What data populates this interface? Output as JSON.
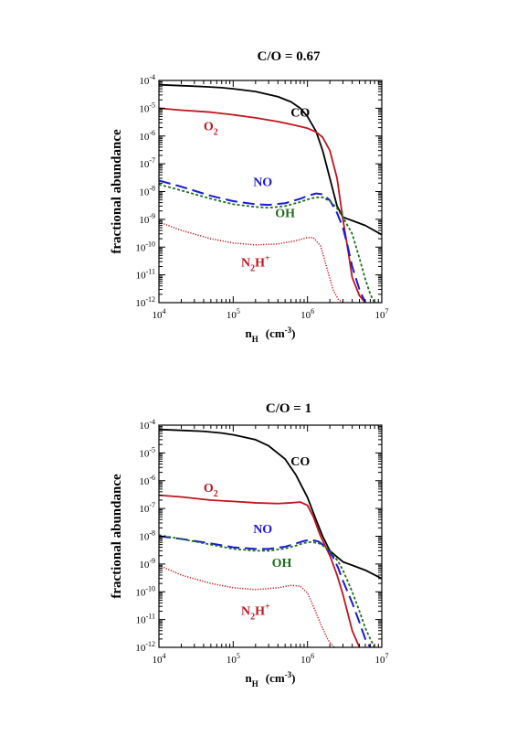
{
  "chart_data": [
    {
      "type": "line",
      "title": "C/O = 0.67",
      "xlabel": {
        "main": "n",
        "sub": "H",
        "unit": "(cm",
        "unit_sup": "-3",
        "unit_end": ")"
      },
      "ylabel": "fractional abundance",
      "x_scale": "log",
      "y_scale": "log",
      "xlim": [
        10000,
        10000000
      ],
      "ylim": [
        1e-12,
        0.0001
      ],
      "x_ticks": [
        {
          "value": 10000,
          "base": "10",
          "exp": "4"
        },
        {
          "value": 100000,
          "base": "10",
          "exp": "5"
        },
        {
          "value": 1000000,
          "base": "10",
          "exp": "6"
        },
        {
          "value": 10000000,
          "base": "10",
          "exp": "7"
        }
      ],
      "y_ticks": [
        {
          "value": 1e-12,
          "base": "10",
          "exp": "-12"
        },
        {
          "value": 1e-11,
          "base": "10",
          "exp": "-11"
        },
        {
          "value": 1e-10,
          "base": "10",
          "exp": "-10"
        },
        {
          "value": 1e-09,
          "base": "10",
          "exp": "-9"
        },
        {
          "value": 1e-08,
          "base": "10",
          "exp": "-8"
        },
        {
          "value": 1e-07,
          "base": "10",
          "exp": "-7"
        },
        {
          "value": 1e-06,
          "base": "10",
          "exp": "-6"
        },
        {
          "value": 1e-05,
          "base": "10",
          "exp": "-5"
        },
        {
          "value": 0.0001,
          "base": "10",
          "exp": "-4"
        }
      ],
      "grid": false,
      "series": [
        {
          "name": "CO",
          "label_main": "CO",
          "label_sub": "",
          "label_sup": "",
          "label_at": [
            800000,
            5e-06
          ],
          "color": "#000000",
          "style": "solid",
          "x": [
            10000,
            20000,
            40000,
            70000,
            100000,
            200000,
            400000,
            600000,
            800000,
            1000000,
            1300000,
            1600000,
            2000000,
            2500000,
            3000000,
            4000000,
            6000000,
            10000000
          ],
          "y": [
            7e-05,
            6.5e-05,
            6e-05,
            5.5e-05,
            5e-05,
            4e-05,
            2.6e-05,
            1.7e-05,
            1e-05,
            5e-06,
            1.5e-06,
            3e-07,
            3e-08,
            3e-09,
            1.2e-09,
            9e-10,
            6e-10,
            2.8e-10
          ]
        },
        {
          "name": "O2",
          "label_main": "O",
          "label_sub": "2",
          "label_sup": "",
          "label_at": [
            50000,
            1.6e-06
          ],
          "color": "#c0141e",
          "style": "solid",
          "x": [
            10000,
            20000,
            50000,
            100000,
            200000,
            400000,
            700000,
            1000000,
            1300000,
            1600000,
            2000000,
            2500000,
            3000000,
            3500000,
            4000000,
            5000000,
            6000000
          ],
          "y": [
            1e-05,
            8.5e-06,
            7.2e-06,
            5.8e-06,
            4.5e-06,
            3.3e-06,
            2.4e-06,
            1.9e-06,
            1.4e-06,
            9e-07,
            3e-07,
            3e-08,
            1e-09,
            8e-11,
            8e-12,
            1.8e-12,
            1e-12
          ]
        },
        {
          "name": "NO",
          "label_main": "NO",
          "label_sub": "",
          "label_sup": "",
          "label_at": [
            250000,
            1.6e-08
          ],
          "color": "#1a1ad6",
          "style": "longdash",
          "x": [
            10000,
            20000,
            50000,
            100000,
            200000,
            300000,
            500000,
            800000,
            1000000,
            1300000,
            1600000,
            2000000,
            2500000,
            3000000,
            3500000,
            4000000,
            5000000,
            6000000
          ],
          "y": [
            2.5e-08,
            1.5e-08,
            7e-09,
            4.5e-09,
            3.5e-09,
            3.3e-09,
            3.8e-09,
            5.5e-09,
            7e-09,
            8.5e-09,
            8e-09,
            4.8e-09,
            1.7e-09,
            5e-10,
            1e-10,
            2e-11,
            3e-12,
            1e-12
          ]
        },
        {
          "name": "OH",
          "label_main": "OH",
          "label_sub": "",
          "label_sup": "",
          "label_at": [
            500000,
            1.2e-09
          ],
          "color": "#1e6e1e",
          "style": "dotted",
          "x": [
            10000,
            20000,
            50000,
            100000,
            200000,
            300000,
            500000,
            800000,
            1000000,
            1300000,
            1600000,
            2000000,
            2500000,
            3000000,
            4000000,
            5000000,
            6000000,
            7000000,
            8000000
          ],
          "y": [
            1.8e-08,
            1.1e-08,
            5.5e-09,
            3.5e-09,
            2.8e-09,
            2.6e-09,
            3e-09,
            4.2e-09,
            5.2e-09,
            6.2e-09,
            6.2e-09,
            4.5e-09,
            2.5e-09,
            1.2e-09,
            3e-10,
            4e-11,
            7e-12,
            2e-12,
            1e-12
          ]
        },
        {
          "name": "N2H+",
          "label_main": "N",
          "label_sub": "2",
          "label_sup": "+",
          "label_tail": "H",
          "label_at": [
            200000,
            2e-11
          ],
          "color": "#c0141e",
          "style": "finedot",
          "x": [
            10000,
            20000,
            50000,
            100000,
            200000,
            400000,
            700000,
            1000000,
            1200000,
            1500000,
            1800000,
            2200000,
            2600000,
            3000000
          ],
          "y": [
            8e-10,
            4e-10,
            2e-10,
            1.4e-10,
            1.2e-10,
            1.3e-10,
            1.7e-10,
            2.2e-10,
            2.2e-10,
            1.1e-10,
            2e-11,
            3e-12,
            1.3e-12,
            1e-12
          ]
        }
      ]
    },
    {
      "type": "line",
      "title": "C/O = 1",
      "xlabel": {
        "main": "n",
        "sub": "H",
        "unit": "(cm",
        "unit_sup": "-3",
        "unit_end": ")"
      },
      "ylabel": "fractional abundance",
      "x_scale": "log",
      "y_scale": "log",
      "xlim": [
        10000,
        10000000
      ],
      "ylim": [
        1e-12,
        0.0001
      ],
      "x_ticks": [
        {
          "value": 10000,
          "base": "10",
          "exp": "4"
        },
        {
          "value": 100000,
          "base": "10",
          "exp": "5"
        },
        {
          "value": 1000000,
          "base": "10",
          "exp": "6"
        },
        {
          "value": 10000000,
          "base": "10",
          "exp": "7"
        }
      ],
      "y_ticks": [
        {
          "value": 1e-12,
          "base": "10",
          "exp": "-12"
        },
        {
          "value": 1e-11,
          "base": "10",
          "exp": "-11"
        },
        {
          "value": 1e-10,
          "base": "10",
          "exp": "-10"
        },
        {
          "value": 1e-09,
          "base": "10",
          "exp": "-9"
        },
        {
          "value": 1e-08,
          "base": "10",
          "exp": "-8"
        },
        {
          "value": 1e-07,
          "base": "10",
          "exp": "-7"
        },
        {
          "value": 1e-06,
          "base": "10",
          "exp": "-6"
        },
        {
          "value": 1e-05,
          "base": "10",
          "exp": "-5"
        },
        {
          "value": 0.0001,
          "base": "10",
          "exp": "-4"
        }
      ],
      "grid": false,
      "series": [
        {
          "name": "CO",
          "label_main": "CO",
          "label_sub": "",
          "label_sup": "",
          "label_at": [
            800000,
            3.5e-06
          ],
          "color": "#000000",
          "style": "solid",
          "x": [
            10000,
            20000,
            40000,
            70000,
            100000,
            200000,
            300000,
            500000,
            700000,
            1000000,
            1300000,
            1600000,
            2000000,
            2500000,
            3000000,
            4000000,
            6000000,
            10000000
          ],
          "y": [
            7e-05,
            6.5e-05,
            6e-05,
            5.2e-05,
            4.5e-05,
            3e-05,
            1.8e-05,
            6e-06,
            1.6e-06,
            2.5e-07,
            4e-08,
            1e-08,
            3e-09,
            1.8e-09,
            1.2e-09,
            9e-10,
            6e-10,
            3e-10
          ]
        },
        {
          "name": "O2",
          "label_main": "O",
          "label_sub": "2",
          "label_sup": "",
          "label_at": [
            50000,
            4e-07
          ],
          "color": "#c0141e",
          "style": "solid",
          "x": [
            10000,
            20000,
            50000,
            100000,
            200000,
            400000,
            600000,
            800000,
            1000000,
            1200000,
            1500000,
            2000000,
            2500000,
            3000000,
            4000000,
            5000000
          ],
          "y": [
            3e-07,
            2.6e-07,
            2e-07,
            1.8e-07,
            1.6e-07,
            1.5e-07,
            1.6e-07,
            1.7e-07,
            1.3e-07,
            5e-08,
            1e-08,
            2e-09,
            4e-10,
            8e-11,
            4e-12,
            1e-12
          ]
        },
        {
          "name": "NO",
          "label_main": "NO",
          "label_sub": "",
          "label_sup": "",
          "label_at": [
            250000,
            1.3e-08
          ],
          "color": "#1a1ad6",
          "style": "longdash",
          "x": [
            10000,
            20000,
            50000,
            100000,
            200000,
            300000,
            500000,
            700000,
            900000,
            1100000,
            1400000,
            1800000,
            2200000,
            2600000,
            3000000,
            4000000,
            5000000,
            6000000,
            7000000
          ],
          "y": [
            1e-08,
            8e-09,
            5.5e-09,
            4e-09,
            3.5e-09,
            3.5e-09,
            4.2e-09,
            5.5e-09,
            6.8e-09,
            7.5e-09,
            6.5e-09,
            4e-09,
            1.8e-09,
            7e-10,
            2.5e-10,
            4e-11,
            8e-12,
            2e-12,
            1e-12
          ]
        },
        {
          "name": "OH",
          "label_main": "OH",
          "label_sub": "",
          "label_sup": "",
          "label_at": [
            450000,
            8e-10
          ],
          "color": "#1e6e1e",
          "style": "dotted",
          "x": [
            10000,
            20000,
            50000,
            100000,
            200000,
            300000,
            500000,
            700000,
            900000,
            1100000,
            1400000,
            1800000,
            2200000,
            2600000,
            3000000,
            4000000,
            5000000,
            6000000,
            7000000,
            8000000
          ],
          "y": [
            1.1e-08,
            8e-09,
            5e-09,
            3.5e-09,
            3e-09,
            3e-09,
            3.6e-09,
            4.6e-09,
            5.7e-09,
            6.2e-09,
            5.7e-09,
            3.8e-09,
            2.2e-09,
            1.2e-09,
            6e-10,
            1e-10,
            2e-11,
            5e-12,
            2e-12,
            1e-12
          ]
        },
        {
          "name": "N2H+",
          "label_main": "N",
          "label_sub": "2",
          "label_sup": "+",
          "label_tail": "H",
          "label_at": [
            200000,
            1.5e-11
          ],
          "color": "#c0141e",
          "style": "finedot",
          "x": [
            10000,
            20000,
            50000,
            100000,
            200000,
            400000,
            600000,
            800000,
            1000000,
            1200000,
            1500000,
            1900000,
            2300000
          ],
          "y": [
            9e-10,
            4e-10,
            2e-10,
            1.4e-10,
            1.2e-10,
            1.4e-10,
            1.7e-10,
            1.6e-10,
            9e-11,
            3e-11,
            7e-12,
            1.8e-12,
            1e-12
          ]
        }
      ]
    }
  ]
}
